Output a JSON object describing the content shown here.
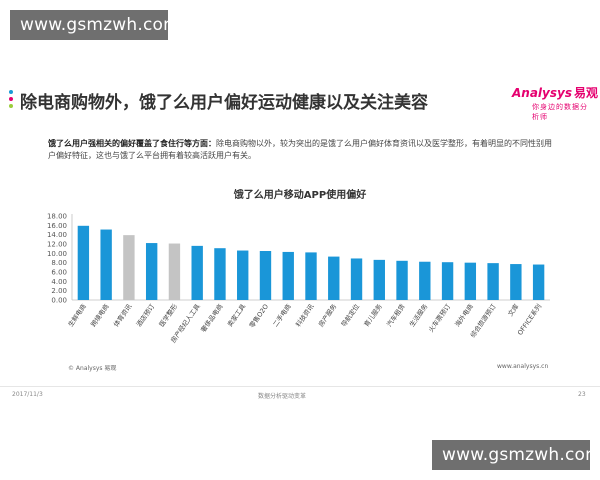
{
  "watermarks": {
    "top": "www.gsmzwh.com",
    "bottom": "www.gsmzwh.com"
  },
  "colors": {
    "accent_dot_1": "#1a9ad6",
    "accent_dot_2": "#e5006f",
    "accent_dot_3": "#9ccc3c",
    "bar_blue": "#1a96d8",
    "bar_gray": "#c4c4c4"
  },
  "slide": {
    "title": "除电商购物外，饿了么用户偏好运动健康以及关注美容"
  },
  "logo": {
    "en": "Analysys",
    "cn": "易观",
    "sub": "你身边的数据分析师"
  },
  "description": {
    "lead": "饿了么用户强相关的偏好覆盖了食住行等方面：",
    "body": "除电商购物以外，较为突出的是饿了么用户偏好体育资讯以及医学整形，有着明显的不同性别用户偏好特征，这也与饿了么平台拥有着较高活跃用户有关。"
  },
  "chart_data": {
    "type": "bar",
    "title": "饿了么用户移动APP使用偏好",
    "categories": [
      "生鲜电商",
      "跨境电商",
      "体育资讯",
      "酒店预订",
      "医学整形",
      "房产经纪人工具",
      "奢侈品电商",
      "卖家工具",
      "零售O2O",
      "二手电商",
      "科技资讯",
      "房产服务",
      "导航定位",
      "育儿服务",
      "汽车租赁",
      "生活服务",
      "火车票预订",
      "海外电商",
      "综合旅游预订",
      "文库",
      "OFFICE系列"
    ],
    "values": [
      15.9,
      15.1,
      13.9,
      12.2,
      12.1,
      11.6,
      11.1,
      10.6,
      10.5,
      10.3,
      10.2,
      9.3,
      8.9,
      8.6,
      8.4,
      8.2,
      8.1,
      8.0,
      7.9,
      7.7,
      7.6
    ],
    "highlight": [
      false,
      false,
      true,
      false,
      true,
      false,
      false,
      false,
      false,
      false,
      false,
      false,
      false,
      false,
      false,
      false,
      false,
      false,
      false,
      false,
      false
    ],
    "yticks": [
      "0.00",
      "2.00",
      "4.00",
      "6.00",
      "8.00",
      "10.00",
      "12.00",
      "14.00",
      "16.00",
      "18.00"
    ],
    "ylim": [
      0,
      18
    ],
    "grid": false,
    "legend": "none"
  },
  "source": "© Analysys 易观",
  "site": "www.analysys.cn",
  "footer": {
    "date": "2017/11/3",
    "center": "数据分析驱动变革",
    "page": "23"
  }
}
